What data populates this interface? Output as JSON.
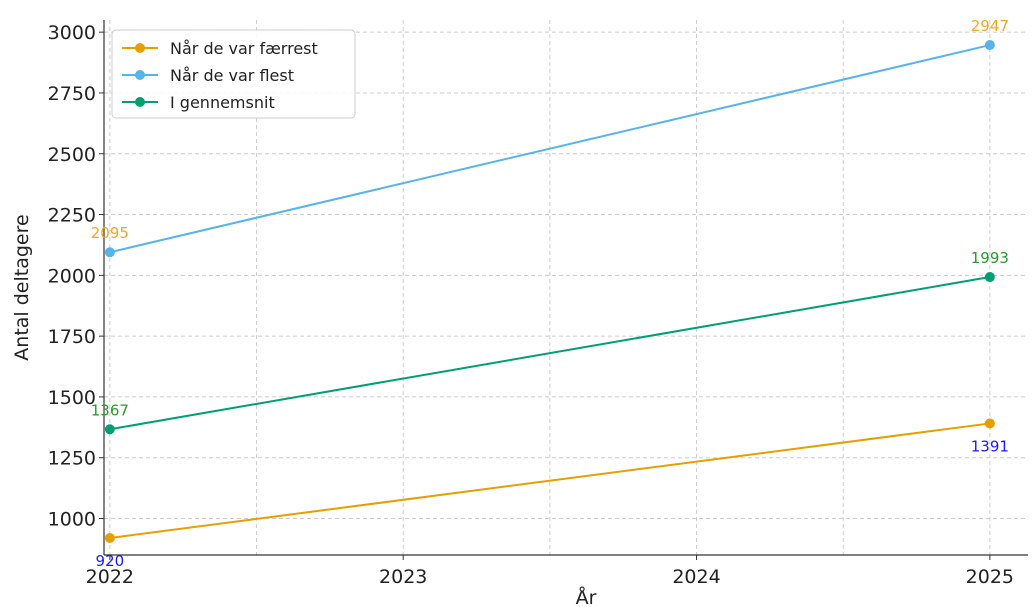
{
  "chart_data": {
    "type": "line",
    "title": "",
    "xlabel": "År",
    "ylabel": "Antal deltagere",
    "x": [
      2022,
      2025
    ],
    "xticks": [
      "2022",
      "2023",
      "2024",
      "2025"
    ],
    "yticks": [
      "1000",
      "1250",
      "1500",
      "1750",
      "2000",
      "2250",
      "2500",
      "2750",
      "3000"
    ],
    "xlim": [
      2021.98,
      2025.13
    ],
    "ylim": [
      850,
      3050
    ],
    "grid": true,
    "legend_position": "top-left",
    "series": [
      {
        "name": "Når de var færrest",
        "color": "#e69f00",
        "values": [
          920,
          1391
        ],
        "labels": [
          "920",
          "1391"
        ],
        "label_color": "#1a1aff",
        "label_placement": "below"
      },
      {
        "name": "Når de var flest",
        "color": "#56b4e9",
        "values": [
          2095,
          2947
        ],
        "labels": [
          "2095",
          "2947"
        ],
        "label_color": "#f5a623",
        "label_placement": "above"
      },
      {
        "name": "I gennemsnit",
        "color": "#009e73",
        "values": [
          1367,
          1993
        ],
        "labels": [
          "1367",
          "1993"
        ],
        "label_color": "#2a9a2a",
        "label_placement": "above"
      }
    ]
  }
}
